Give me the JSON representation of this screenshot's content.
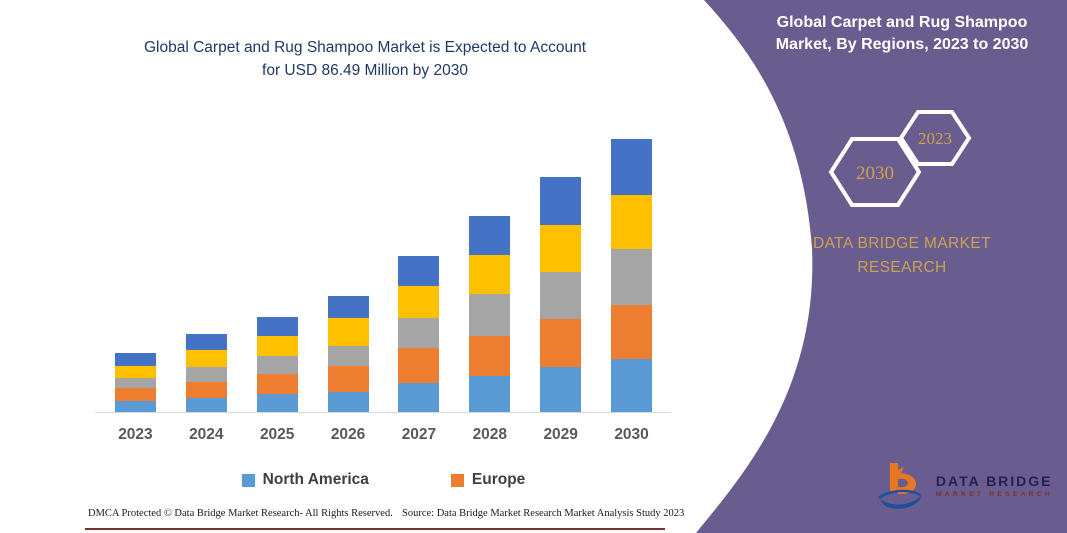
{
  "left_panel": {
    "title": "Global Carpet and Rug Shampoo Market is Expected to Account for USD 86.49 Million by 2030",
    "footer_left": "DMCA Protected © Data Bridge Market Research-  All Rights Reserved.",
    "footer_source": "Source: Data Bridge Market Research  Market Analysis Study 2023"
  },
  "right_panel": {
    "title": "Global Carpet and Rug Shampoo Market, By Regions, 2023 to 2030",
    "hexagon_back_label": "2023",
    "hexagon_front_label": "2030",
    "brand_text": "DATA BRIDGE MARKET RESEARCH",
    "logo_line1": "DATA BRIDGE",
    "logo_line2": "MARKET RESEARCH",
    "background_color": "#695C8E",
    "accent_gold": "#CDA24E"
  },
  "chart_data": {
    "type": "bar",
    "stacked": true,
    "title": "Global Carpet and Rug Shampoo Market is Expected to Account for USD 86.49 Million by 2030",
    "unit": "USD Million",
    "categories": [
      "2023",
      "2024",
      "2025",
      "2026",
      "2027",
      "2028",
      "2029",
      "2030"
    ],
    "series": [
      {
        "name": "North America",
        "color": "#5B9BD5",
        "in_legend": true,
        "values": [
          3.7,
          4.9,
          6.1,
          6.5,
          9.6,
          11.8,
          14.4,
          16.89
        ]
      },
      {
        "name": "Europe",
        "color": "#ED7D31",
        "in_legend": true,
        "values": [
          4.2,
          4.9,
          6.1,
          8.2,
          11.0,
          12.6,
          15.3,
          17.2
        ]
      },
      {
        "name": "",
        "color": "#A5A5A5",
        "in_legend": false,
        "values": [
          3.2,
          4.7,
          5.8,
          6.5,
          9.5,
          13.1,
          14.7,
          17.5
        ]
      },
      {
        "name": "",
        "color": "#FFC000",
        "in_legend": false,
        "values": [
          3.7,
          5.3,
          6.2,
          8.7,
          10.0,
          12.2,
          14.9,
          17.2
        ]
      },
      {
        "name": "",
        "color": "#4472C4",
        "in_legend": false,
        "values": [
          4.1,
          5.0,
          6.1,
          6.9,
          9.5,
          12.3,
          15.2,
          17.7
        ]
      }
    ],
    "totals": [
      18.9,
      24.8,
      30.3,
      36.8,
      49.6,
      62.0,
      74.5,
      86.49
    ],
    "legend": [
      {
        "label": "North America",
        "color": "#5B9BD5"
      },
      {
        "label": "Europe",
        "color": "#ED7D31"
      }
    ],
    "legend_position": "bottom",
    "y_axis_visible": false,
    "x_axis_visible": true,
    "grid": false,
    "ylim": [
      0,
      90
    ]
  }
}
